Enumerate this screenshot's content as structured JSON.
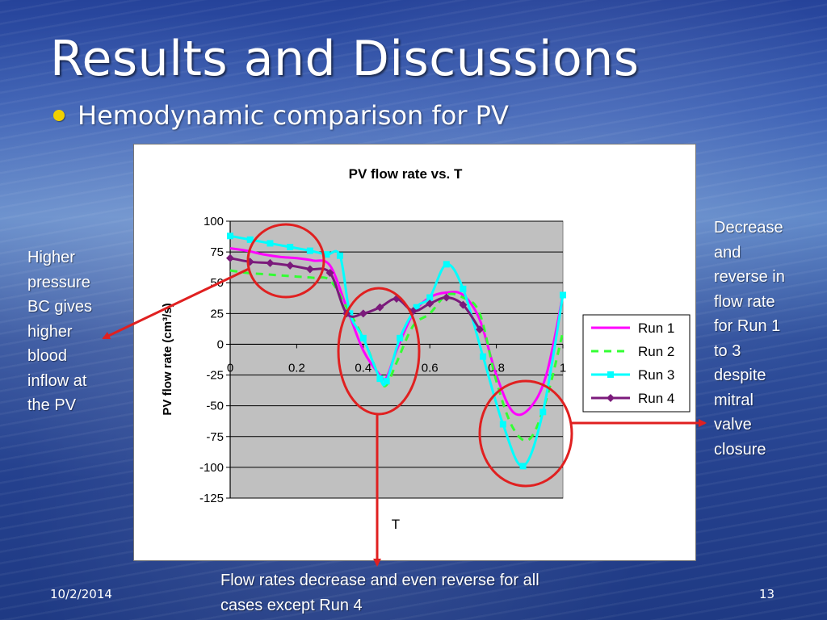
{
  "slide": {
    "title": "Results and Discussions",
    "bullet": "Hemodynamic comparison for PV",
    "footer_date": "10/2/2014",
    "page_number": "13"
  },
  "annotations": {
    "left": "Higher\npressure\nBC gives\nhigher\nblood\ninflow at\nthe PV",
    "right": "Decrease\nand\nreverse in\nflow rate\nfor Run 1\nto 3\ndespite\nmitral\nvalve\nclosure",
    "bottom": "Flow rates decrease and even reverse for all\ncases except Run 4",
    "color": "#e02020"
  },
  "chart_data": {
    "type": "line",
    "title": "PV flow rate vs. T",
    "xlabel": "T",
    "ylabel": "PV flow rate (cm³/s)",
    "xlim": [
      0,
      1
    ],
    "ylim": [
      -125,
      100
    ],
    "xticks": [
      0,
      0.2,
      0.4,
      0.6,
      0.8,
      1
    ],
    "yticks": [
      100,
      75,
      50,
      25,
      0,
      -25,
      -50,
      -75,
      -100,
      -125
    ],
    "xtick_labels": [
      "0",
      "0.2",
      "0.4",
      "0.6",
      "0.8",
      "1"
    ],
    "ytick_labels": [
      "100",
      "75",
      "50",
      "25",
      "0",
      "-25",
      "-50",
      "-75",
      "-100",
      "-125"
    ],
    "grid": true,
    "legend_position": "right",
    "plot_background": "#c0c0c0",
    "series": [
      {
        "name": "Run 1",
        "color": "#ff00ff",
        "dash": "solid",
        "marker": "none",
        "x": [
          0,
          0.05,
          0.1,
          0.15,
          0.2,
          0.25,
          0.3,
          0.35,
          0.4,
          0.45,
          0.47,
          0.5,
          0.55,
          0.6,
          0.65,
          0.7,
          0.75,
          0.8,
          0.85,
          0.9,
          0.95,
          1.0
        ],
        "y": [
          78,
          76,
          73,
          71,
          70,
          68,
          64,
          30,
          -5,
          -25,
          -27,
          -5,
          25,
          38,
          42,
          40,
          20,
          -25,
          -55,
          -52,
          -25,
          40
        ]
      },
      {
        "name": "Run 2",
        "color": "#33ff33",
        "dash": "dashed",
        "marker": "none",
        "x": [
          0,
          0.05,
          0.1,
          0.15,
          0.2,
          0.25,
          0.3,
          0.35,
          0.4,
          0.45,
          0.47,
          0.5,
          0.55,
          0.6,
          0.65,
          0.7,
          0.75,
          0.8,
          0.85,
          0.9,
          0.95,
          1.0
        ],
        "y": [
          60,
          58,
          57,
          56,
          55,
          54,
          52,
          30,
          5,
          -28,
          -33,
          -15,
          15,
          25,
          40,
          38,
          25,
          -30,
          -68,
          -77,
          -45,
          10
        ]
      },
      {
        "name": "Run 3",
        "color": "#00ffff",
        "dash": "solid",
        "marker": "square",
        "x": [
          0,
          0.06,
          0.12,
          0.18,
          0.24,
          0.29,
          0.33,
          0.36,
          0.4,
          0.45,
          0.47,
          0.51,
          0.56,
          0.6,
          0.65,
          0.7,
          0.76,
          0.82,
          0.88,
          0.94,
          1.0
        ],
        "y": [
          88,
          85,
          82,
          79,
          76,
          73,
          72,
          25,
          5,
          -28,
          -30,
          5,
          30,
          38,
          65,
          45,
          -10,
          -65,
          -99,
          -55,
          40
        ]
      },
      {
        "name": "Run 4",
        "color": "#7b1a7b",
        "dash": "solid",
        "marker": "diamond",
        "x": [
          0,
          0.06,
          0.12,
          0.18,
          0.24,
          0.3,
          0.35,
          0.4,
          0.45,
          0.5,
          0.55,
          0.6,
          0.65,
          0.7,
          0.75
        ],
        "y": [
          70,
          67,
          66,
          64,
          61,
          58,
          25,
          25,
          30,
          37,
          27,
          33,
          38,
          32,
          12
        ]
      }
    ]
  }
}
